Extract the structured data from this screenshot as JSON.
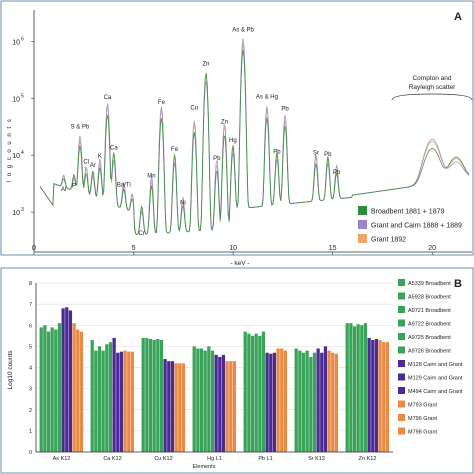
{
  "panel_a": {
    "tag": "A",
    "ylabel": "l o g   c o u n t s",
    "xlabel": "- keV -",
    "y_ticks": [
      {
        "base": "10",
        "exp": "3",
        "log": 3
      },
      {
        "base": "10",
        "exp": "4",
        "log": 4
      },
      {
        "base": "10",
        "exp": "5",
        "log": 5
      },
      {
        "base": "10",
        "exp": "6",
        "log": 6
      }
    ],
    "x_ticks": [
      "0",
      "5",
      "10",
      "15",
      "20"
    ],
    "legend": [
      {
        "label": "Broadbent 1881 + 1879",
        "color": "#2e8b3a"
      },
      {
        "label": "Grant and Cairn 1888 + 1889",
        "color": "#9a86c4"
      },
      {
        "label": "Grant 1892",
        "color": "#f0a36a"
      }
    ],
    "scatter_label": [
      "Compton and",
      "Rayleigh scatter"
    ],
    "peaks": [
      {
        "text": "Al",
        "x": 1.49,
        "log": 3.32
      },
      {
        "text": "P",
        "x": 2.01,
        "log": 3.38
      },
      {
        "text": "S & Pb",
        "x": 2.31,
        "log": 4.42
      },
      {
        "text": "Cl",
        "x": 2.62,
        "log": 3.8
      },
      {
        "text": "Ar",
        "x": 2.96,
        "log": 3.74
      },
      {
        "text": "K",
        "x": 3.31,
        "log": 3.9
      },
      {
        "text": "Ca",
        "x": 3.69,
        "log": 4.93
      },
      {
        "text": "Ca",
        "x": 4.01,
        "log": 4.05
      },
      {
        "text": "Ba/Ti",
        "x": 4.51,
        "log": 3.4
      },
      {
        "text": "Cr",
        "x": 5.41,
        "log": 2.55
      },
      {
        "text": "Mn",
        "x": 5.9,
        "log": 3.56
      },
      {
        "text": "Fe",
        "x": 6.4,
        "log": 4.85
      },
      {
        "text": "Fe",
        "x": 7.06,
        "log": 4.02
      },
      {
        "text": "Ni",
        "x": 7.48,
        "log": 3.08
      },
      {
        "text": "Zn",
        "x": 8.64,
        "log": 5.52
      },
      {
        "text": "Cu",
        "x": 8.05,
        "log": 4.75
      },
      {
        "text": "Pb",
        "x": 9.18,
        "log": 3.86
      },
      {
        "text": "Zn",
        "x": 9.57,
        "log": 4.5
      },
      {
        "text": "Hg",
        "x": 9.99,
        "log": 4.18
      },
      {
        "text": "As & Pb",
        "x": 10.5,
        "log": 6.12
      },
      {
        "text": "As & Hg",
        "x": 11.7,
        "log": 4.94
      },
      {
        "text": "Pb",
        "x": 12.61,
        "log": 4.73
      },
      {
        "text": "Pb",
        "x": 12.2,
        "log": 3.98
      },
      {
        "text": "Sr",
        "x": 14.16,
        "log": 3.96
      },
      {
        "text": "Pb",
        "x": 14.76,
        "log": 3.93
      },
      {
        "text": "Pb",
        "x": 15.2,
        "log": 3.62
      }
    ]
  },
  "chart_data": {
    "type": "bar",
    "title": "",
    "xlabel": "Elements",
    "ylabel": "Log10 counts",
    "ylim": [
      0,
      8
    ],
    "y_ticks": [
      "0",
      "1",
      "2",
      "3",
      "4",
      "5",
      "6",
      "7",
      "8"
    ],
    "categories": [
      "As K12",
      "Ca K12",
      "Cu K12",
      "Hg L1",
      "Pb L1",
      "Sr K12",
      "Zn K12"
    ],
    "grid": true,
    "legend_position": "right",
    "series": [
      {
        "name": "A5339 Broadbent",
        "color": "#3aa35a",
        "values": [
          5.9,
          5.3,
          5.4,
          5.0,
          5.7,
          4.9,
          6.1
        ]
      },
      {
        "name": "A5928 Broadbent",
        "color": "#3aa35a",
        "values": [
          6.0,
          4.8,
          5.4,
          4.9,
          5.6,
          4.8,
          6.1
        ]
      },
      {
        "name": "A9721 Broadbent",
        "color": "#3aa35a",
        "values": [
          5.7,
          5.0,
          5.35,
          4.9,
          5.5,
          4.7,
          5.95
        ]
      },
      {
        "name": "A9722 Broadbent",
        "color": "#3aa35a",
        "values": [
          5.9,
          4.8,
          5.3,
          4.8,
          5.6,
          4.8,
          6.05
        ]
      },
      {
        "name": "A9725 Broadbent",
        "color": "#3aa35a",
        "values": [
          5.8,
          5.1,
          5.35,
          5.0,
          5.5,
          4.5,
          6.0
        ]
      },
      {
        "name": "A9726 Broadbent",
        "color": "#3aa35a",
        "values": [
          6.1,
          5.2,
          5.3,
          4.8,
          5.7,
          4.7,
          6.1
        ]
      },
      {
        "name": "M128 Cairn and Grant",
        "color": "#4b2a93",
        "values": [
          6.8,
          5.4,
          4.4,
          4.6,
          4.7,
          4.9,
          5.4
        ]
      },
      {
        "name": "M129 Cairn and Grant",
        "color": "#4b2a93",
        "values": [
          6.85,
          4.7,
          4.3,
          4.5,
          4.65,
          4.7,
          5.3
        ]
      },
      {
        "name": "M494 Cairn and Grant",
        "color": "#4b2a93",
        "values": [
          6.7,
          4.75,
          4.3,
          4.6,
          4.7,
          5.0,
          5.35
        ]
      },
      {
        "name": "M793 Grant",
        "color": "#e98a45",
        "values": [
          6.1,
          4.8,
          4.2,
          4.3,
          4.9,
          4.8,
          5.3
        ]
      },
      {
        "name": "M796 Grant",
        "color": "#e98a45",
        "values": [
          5.8,
          4.75,
          4.2,
          4.3,
          4.9,
          4.7,
          5.2
        ]
      },
      {
        "name": "M798 Grant",
        "color": "#e98a45",
        "values": [
          5.7,
          4.75,
          4.2,
          4.3,
          4.8,
          4.65,
          5.2
        ]
      }
    ],
    "panel_tag": "B"
  }
}
